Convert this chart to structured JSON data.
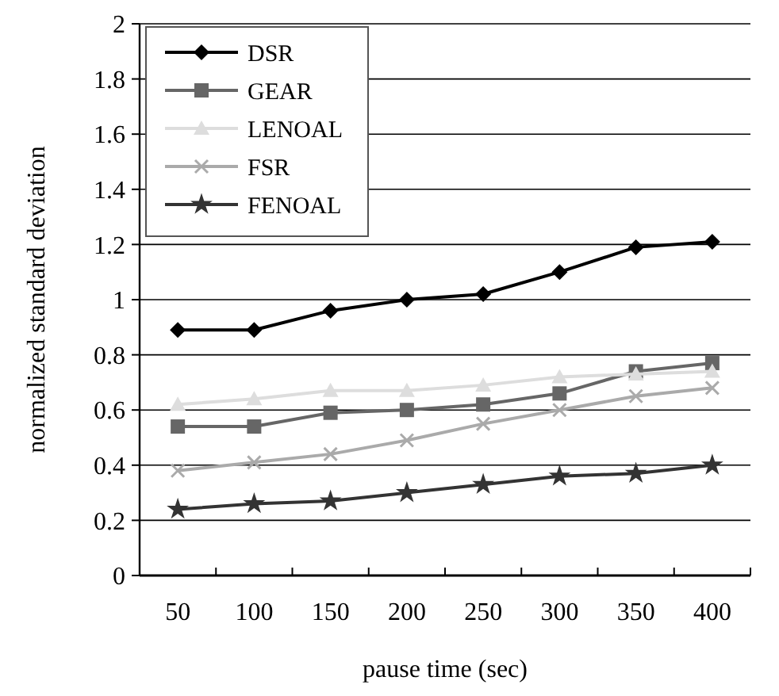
{
  "chart_data": {
    "type": "line",
    "xlabel": "pause time (sec)",
    "ylabel": "normalized standard deviation",
    "categories": [
      "50",
      "100",
      "150",
      "200",
      "250",
      "300",
      "350",
      "400"
    ],
    "ylim": [
      0,
      2
    ],
    "yticks": [
      0,
      0.2,
      0.4,
      0.6,
      0.8,
      1,
      1.2,
      1.4,
      1.6,
      1.8,
      2
    ],
    "grid": "y",
    "legend": "top left",
    "line_style": "solid",
    "series": [
      {
        "name": "DSR",
        "color": "#000000",
        "marker": "diamond",
        "values": [
          0.89,
          0.89,
          0.96,
          1.0,
          1.02,
          1.1,
          1.19,
          1.21
        ]
      },
      {
        "name": "GEAR",
        "color": "#666666",
        "marker": "square",
        "values": [
          0.54,
          0.54,
          0.59,
          0.6,
          0.62,
          0.66,
          0.74,
          0.77
        ]
      },
      {
        "name": "LENOAL",
        "color": "#dddddd",
        "marker": "triangle",
        "values": [
          0.62,
          0.64,
          0.67,
          0.67,
          0.69,
          0.72,
          0.73,
          0.74
        ]
      },
      {
        "name": "FSR",
        "color": "#aaaaaa",
        "marker": "cross",
        "values": [
          0.38,
          0.41,
          0.44,
          0.49,
          0.55,
          0.6,
          0.65,
          0.68
        ]
      },
      {
        "name": "FENOAL",
        "color": "#333333",
        "marker": "star",
        "values": [
          0.24,
          0.26,
          0.27,
          0.3,
          0.33,
          0.36,
          0.37,
          0.4
        ]
      }
    ]
  }
}
